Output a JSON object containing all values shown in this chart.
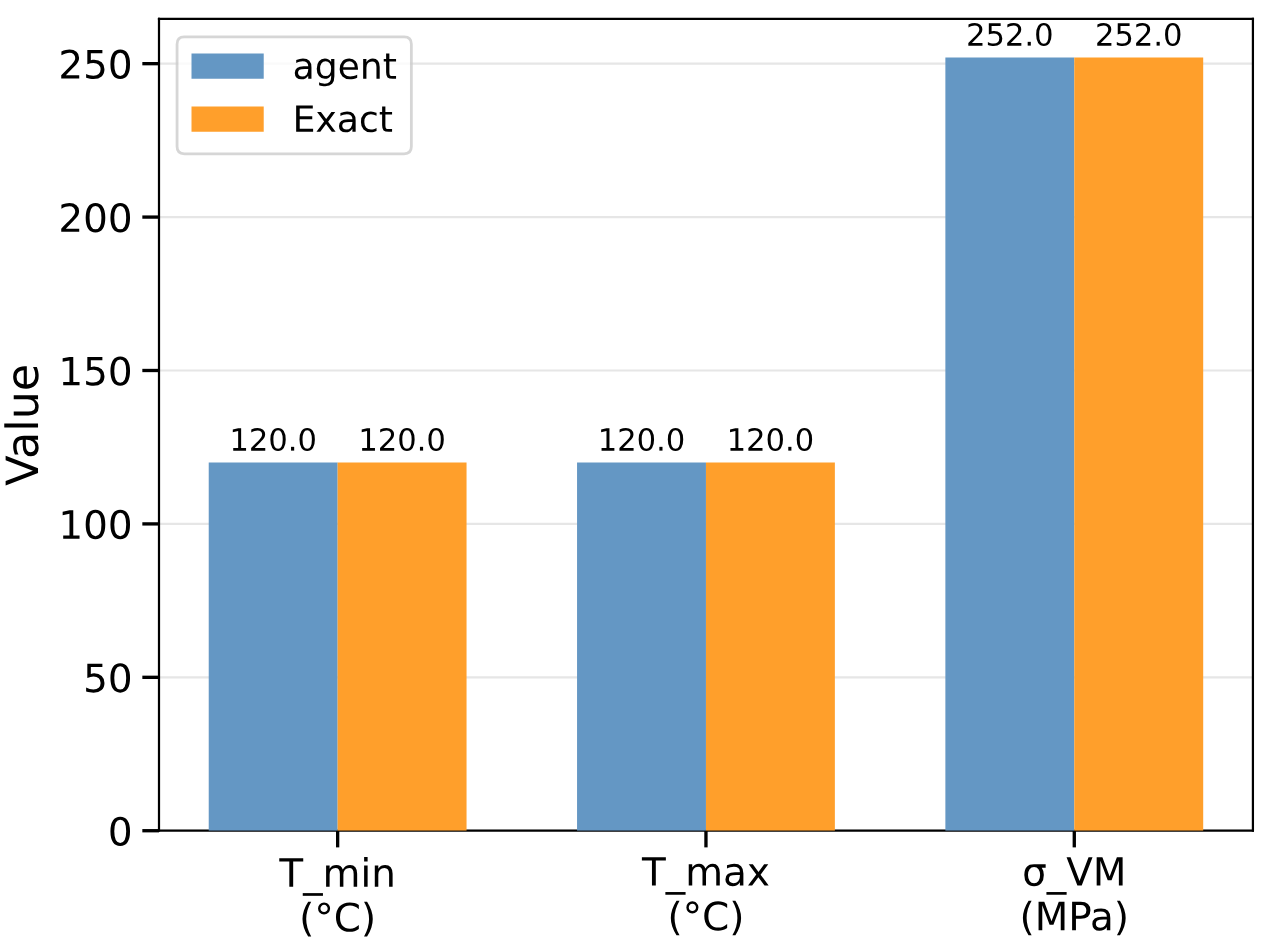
{
  "chart_data": {
    "type": "bar",
    "ylabel": "Value",
    "categories": [
      "T_min\n(°C)",
      "T_max\n(°C)",
      "σ_VM\n(MPa)"
    ],
    "series": [
      {
        "name": "agent",
        "color": "#6497c4",
        "values": [
          120.0,
          120.0,
          252.0
        ],
        "value_labels": [
          "120.0",
          "120.0",
          "252.0"
        ]
      },
      {
        "name": "Exact",
        "color": "#ff9f2b",
        "values": [
          120.0,
          120.0,
          252.0
        ],
        "value_labels": [
          "120.0",
          "120.0",
          "252.0"
        ]
      }
    ],
    "ylim": [
      0,
      264.6
    ],
    "yticks": [
      0,
      50,
      100,
      150,
      200,
      250
    ],
    "grid": "y",
    "legend": "top left"
  }
}
